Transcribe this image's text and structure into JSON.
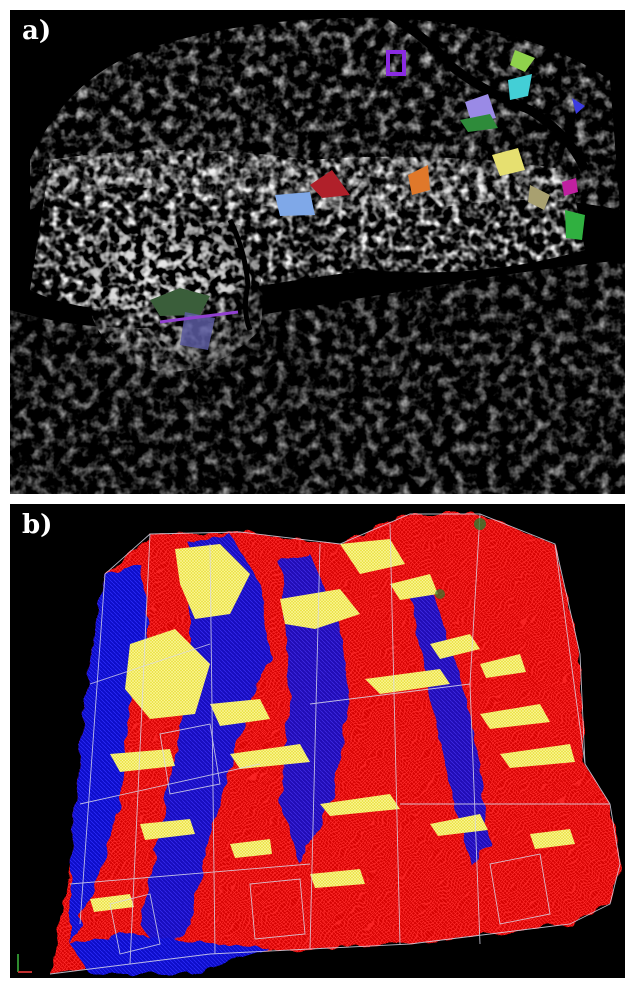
{
  "panels": [
    {
      "label": "a)",
      "content": "grayscale-point-cloud-with-colored-planes"
    },
    {
      "label": "b)",
      "content": "colored-mesh-red-blue-yellow-with-wireframe"
    }
  ],
  "colors": {
    "background": "#000000",
    "label": "#ffffff",
    "mesh_red": "#e00000",
    "mesh_blue": "#1010d8",
    "mesh_yellow": "#e8e040",
    "wireframe": "#d8d8e8"
  }
}
